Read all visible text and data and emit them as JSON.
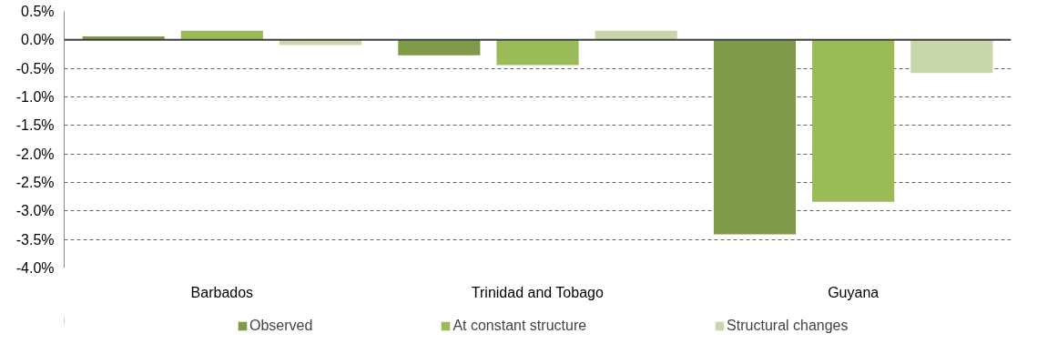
{
  "chart_data": {
    "type": "bar",
    "categories": [
      "Barbados",
      "Trinidad and Tobago",
      "Guyana"
    ],
    "series": [
      {
        "name": "Observed",
        "color": "#7f9a48",
        "values": [
          0.06,
          -0.27,
          -3.41
        ]
      },
      {
        "name": "At constant structure",
        "color": "#9bbb59",
        "values": [
          0.16,
          -0.44,
          -2.84
        ]
      },
      {
        "name": "Structural changes",
        "color": "#c7d7aa",
        "values": [
          -0.09,
          0.16,
          -0.58
        ]
      }
    ],
    "ylim": [
      -4.0,
      0.5
    ],
    "yticks": [
      {
        "value": -4.0,
        "label": "-4.0%"
      },
      {
        "value": -3.5,
        "label": "-3.5%"
      },
      {
        "value": -3.0,
        "label": "-3.0%"
      },
      {
        "value": -2.5,
        "label": "-2.5%"
      },
      {
        "value": -2.0,
        "label": "-2.0%"
      },
      {
        "value": -1.5,
        "label": "-1.5%"
      },
      {
        "value": -1.0,
        "label": "-1.0%"
      },
      {
        "value": -0.5,
        "label": "-0.5%"
      },
      {
        "value": 0.0,
        "label": "0.0%"
      },
      {
        "value": 0.5,
        "label": "0.5%"
      }
    ],
    "grid": "y",
    "legend": "bottom"
  }
}
